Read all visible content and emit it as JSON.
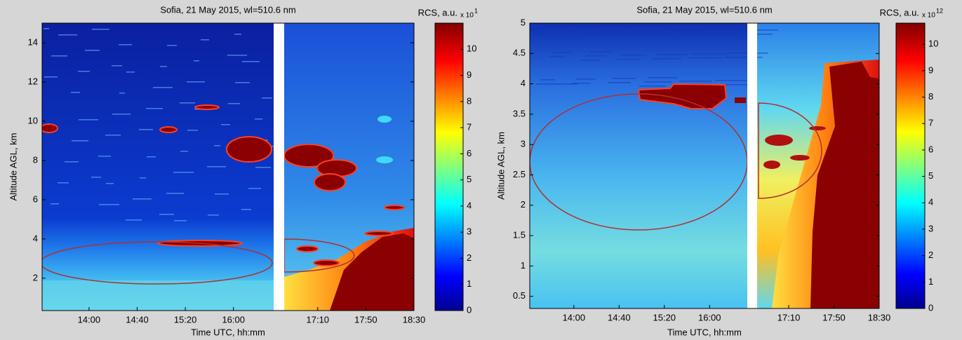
{
  "chart_data": [
    {
      "type": "heatmap",
      "title": "Sofia, 21 May 2015, wl=510.6 nm",
      "x_label": "Time UTC, hh:mm",
      "y_label": "Altitude AGL, km",
      "colorbar_label": "RCS, a.u.",
      "colorbar_multiplier": "x 10",
      "colorbar_exponent": "1",
      "xlim": [
        801,
        1110
      ],
      "xticks": [
        {
          "value": 840,
          "label": "14:00"
        },
        {
          "value": 880,
          "label": "14:40"
        },
        {
          "value": 920,
          "label": "15:20"
        },
        {
          "value": 960,
          "label": "16:00"
        },
        {
          "value": 1030,
          "label": "17:10"
        },
        {
          "value": 1070,
          "label": "17:50"
        },
        {
          "value": 1110,
          "label": "18:30"
        }
      ],
      "ylim": [
        0.35,
        15
      ],
      "yticks": [
        2,
        4,
        6,
        8,
        10,
        12,
        14
      ],
      "clim": [
        0,
        11
      ],
      "cticks": [
        0,
        1,
        2,
        3,
        4,
        5,
        6,
        7,
        8,
        9,
        10
      ]
    },
    {
      "type": "heatmap",
      "title": "Sofia, 21 May 2015, wl=510.6 nm",
      "x_label": "Time UTC, hh:mm",
      "y_label": "Altitude AGL, km",
      "colorbar_label": "RCS, a.u.",
      "colorbar_multiplier": "x 10",
      "colorbar_exponent": "12",
      "xlim": [
        801,
        1110
      ],
      "xticks": [
        {
          "value": 840,
          "label": "14:00"
        },
        {
          "value": 880,
          "label": "14:40"
        },
        {
          "value": 920,
          "label": "15:20"
        },
        {
          "value": 960,
          "label": "16:00"
        },
        {
          "value": 1030,
          "label": "17:10"
        },
        {
          "value": 1070,
          "label": "17:50"
        },
        {
          "value": 1110,
          "label": "18:30"
        }
      ],
      "ylim": [
        0.3,
        5
      ],
      "yticks": [
        0.5,
        1,
        1.5,
        2,
        2.5,
        3,
        3.5,
        4,
        4.5,
        5
      ],
      "clim": [
        0,
        10.8
      ],
      "cticks": [
        0,
        1,
        2,
        3,
        4,
        5,
        6,
        7,
        8,
        9,
        10
      ]
    }
  ]
}
